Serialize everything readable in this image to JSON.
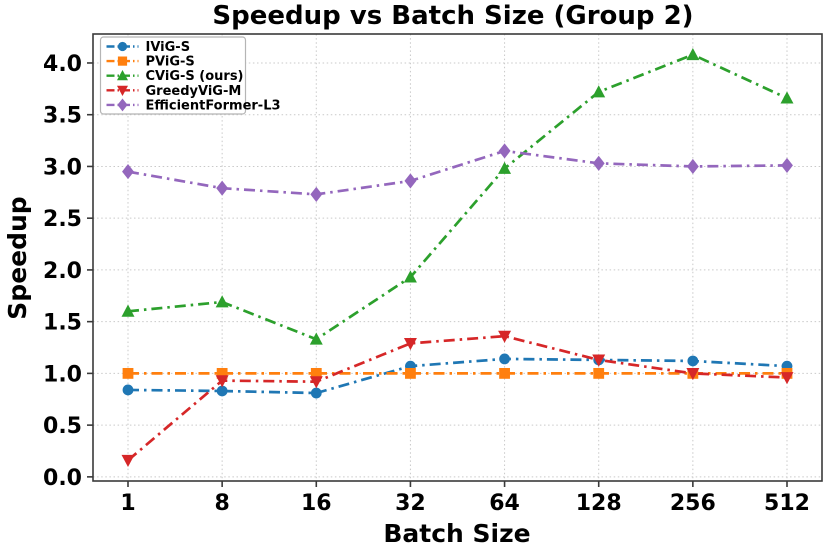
{
  "chart_data": {
    "type": "line",
    "title": "Speedup vs Batch Size (Group 2)",
    "xlabel": "Batch Size",
    "ylabel": "Speedup",
    "categories": [
      "1",
      "8",
      "16",
      "32",
      "64",
      "128",
      "256",
      "512"
    ],
    "y_ticks": [
      0.0,
      0.5,
      1.0,
      1.5,
      2.0,
      2.5,
      3.0,
      3.5,
      4.0
    ],
    "ylim": [
      -0.04,
      4.28
    ],
    "grid": true,
    "grid_style": "dotted",
    "line_style": "dash-dot",
    "legend_position": "upper-left",
    "colors": {
      "spine": "#3a3a3a",
      "gridline": "#c9c9c9",
      "legend_border": "#b5b5b5",
      "legend_background": "#ffffff"
    },
    "series": [
      {
        "name": "IViG-S",
        "color": "#1f77b4",
        "marker": "circle",
        "values": [
          0.84,
          0.83,
          0.81,
          1.07,
          1.14,
          1.13,
          1.12,
          1.07
        ]
      },
      {
        "name": "PViG-S",
        "color": "#ff7f0e",
        "marker": "square",
        "values": [
          1.0,
          1.0,
          1.0,
          1.0,
          1.0,
          1.0,
          1.0,
          1.0
        ]
      },
      {
        "name": "CViG-S (ours)",
        "color": "#2ca02c",
        "marker": "triangle-up",
        "values": [
          1.6,
          1.69,
          1.33,
          1.93,
          2.98,
          3.72,
          4.08,
          3.66
        ]
      },
      {
        "name": "GreedyViG-M",
        "color": "#d62728",
        "marker": "triangle-down",
        "values": [
          0.16,
          0.93,
          0.92,
          1.29,
          1.36,
          1.13,
          1.0,
          0.96
        ]
      },
      {
        "name": "EfficientFormer-L3",
        "color": "#9467bd",
        "marker": "diamond",
        "values": [
          2.95,
          2.79,
          2.73,
          2.86,
          3.15,
          3.03,
          3.0,
          3.01
        ]
      }
    ]
  }
}
